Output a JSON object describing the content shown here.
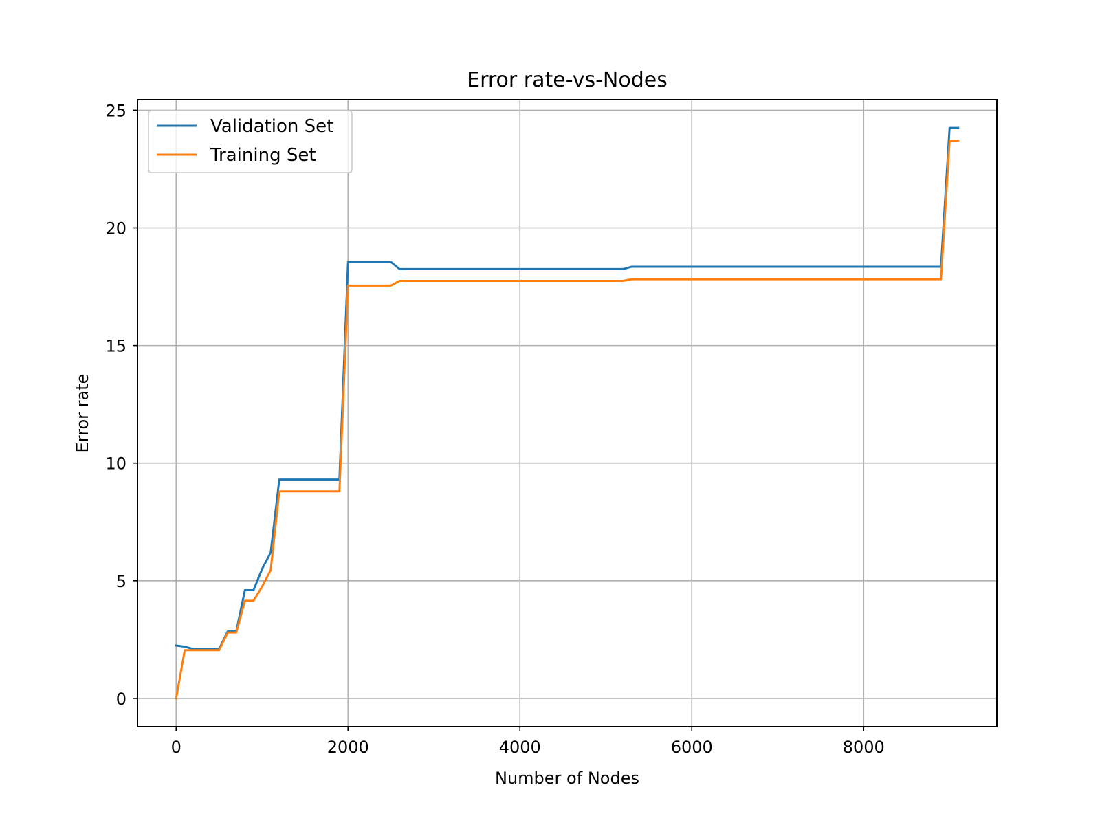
{
  "chart_data": {
    "type": "line",
    "title": "Error rate-vs-Nodes",
    "xlabel": "Number of Nodes",
    "ylabel": "Error rate",
    "xlim": [
      -450,
      9550
    ],
    "ylim": [
      -1.2,
      25.45
    ],
    "xticks": [
      0,
      2000,
      4000,
      6000,
      8000
    ],
    "yticks": [
      0,
      5,
      10,
      15,
      20,
      25
    ],
    "grid": true,
    "legend_position": "top-left",
    "series": [
      {
        "name": "Validation Set",
        "color": "#1f77b4",
        "x": [
          0,
          100,
          200,
          300,
          400,
          500,
          600,
          700,
          800,
          900,
          1000,
          1100,
          1200,
          1300,
          1400,
          1500,
          1600,
          1700,
          1800,
          1900,
          2000,
          2100,
          2200,
          2300,
          2400,
          2500,
          2600,
          2700,
          2800,
          2900,
          3000,
          3100,
          3200,
          3300,
          3400,
          3500,
          3600,
          3700,
          3800,
          3900,
          4000,
          4100,
          4200,
          4300,
          4400,
          4500,
          4600,
          4700,
          4800,
          4900,
          5000,
          5100,
          5200,
          5300,
          5400,
          5500,
          5600,
          5700,
          5800,
          5900,
          6000,
          6100,
          6200,
          6300,
          6400,
          6500,
          6600,
          6700,
          6800,
          6900,
          7000,
          7100,
          7200,
          7300,
          7400,
          7500,
          7600,
          7700,
          7800,
          7900,
          8000,
          8100,
          8200,
          8300,
          8400,
          8500,
          8600,
          8700,
          8800,
          8900,
          9000,
          9100
        ],
        "y": [
          2.25,
          2.2,
          2.1,
          2.1,
          2.1,
          2.1,
          2.85,
          2.85,
          4.6,
          4.6,
          5.5,
          6.2,
          9.3,
          9.3,
          9.3,
          9.3,
          9.3,
          9.3,
          9.3,
          9.3,
          18.55,
          18.55,
          18.55,
          18.55,
          18.55,
          18.55,
          18.25,
          18.25,
          18.25,
          18.25,
          18.25,
          18.25,
          18.25,
          18.25,
          18.25,
          18.25,
          18.25,
          18.25,
          18.25,
          18.25,
          18.25,
          18.25,
          18.25,
          18.25,
          18.25,
          18.25,
          18.25,
          18.25,
          18.25,
          18.25,
          18.25,
          18.25,
          18.25,
          18.35,
          18.35,
          18.35,
          18.35,
          18.35,
          18.35,
          18.35,
          18.35,
          18.35,
          18.35,
          18.35,
          18.35,
          18.35,
          18.35,
          18.35,
          18.35,
          18.35,
          18.35,
          18.35,
          18.35,
          18.35,
          18.35,
          18.35,
          18.35,
          18.35,
          18.35,
          18.35,
          18.35,
          18.35,
          18.35,
          18.35,
          18.35,
          18.35,
          18.35,
          18.35,
          18.35,
          18.35,
          24.25,
          24.25
        ]
      },
      {
        "name": "Training Set",
        "color": "#ff7f0e",
        "x": [
          0,
          100,
          200,
          300,
          400,
          500,
          600,
          700,
          800,
          900,
          1000,
          1100,
          1200,
          1300,
          1400,
          1500,
          1600,
          1700,
          1800,
          1900,
          2000,
          2100,
          2200,
          2300,
          2400,
          2500,
          2600,
          2700,
          2800,
          2900,
          3000,
          3100,
          3200,
          3300,
          3400,
          3500,
          3600,
          3700,
          3800,
          3900,
          4000,
          4100,
          4200,
          4300,
          4400,
          4500,
          4600,
          4700,
          4800,
          4900,
          5000,
          5100,
          5200,
          5300,
          5400,
          5500,
          5600,
          5700,
          5800,
          5900,
          6000,
          6100,
          6200,
          6300,
          6400,
          6500,
          6600,
          6700,
          6800,
          6900,
          7000,
          7100,
          7200,
          7300,
          7400,
          7500,
          7600,
          7700,
          7800,
          7900,
          8000,
          8100,
          8200,
          8300,
          8400,
          8500,
          8600,
          8700,
          8800,
          8900,
          9000,
          9100
        ],
        "y": [
          0.0,
          2.05,
          2.05,
          2.05,
          2.05,
          2.05,
          2.8,
          2.8,
          4.15,
          4.15,
          4.75,
          5.45,
          8.8,
          8.8,
          8.8,
          8.8,
          8.8,
          8.8,
          8.8,
          8.8,
          17.55,
          17.55,
          17.55,
          17.55,
          17.55,
          17.55,
          17.75,
          17.75,
          17.75,
          17.75,
          17.75,
          17.75,
          17.75,
          17.75,
          17.75,
          17.75,
          17.75,
          17.75,
          17.75,
          17.75,
          17.75,
          17.75,
          17.75,
          17.75,
          17.75,
          17.75,
          17.75,
          17.75,
          17.75,
          17.75,
          17.75,
          17.75,
          17.75,
          17.82,
          17.82,
          17.82,
          17.82,
          17.82,
          17.82,
          17.82,
          17.82,
          17.82,
          17.82,
          17.82,
          17.82,
          17.82,
          17.82,
          17.82,
          17.82,
          17.82,
          17.82,
          17.82,
          17.82,
          17.82,
          17.82,
          17.82,
          17.82,
          17.82,
          17.82,
          17.82,
          17.82,
          17.82,
          17.82,
          17.82,
          17.82,
          17.82,
          17.82,
          17.82,
          17.82,
          17.82,
          23.7,
          23.7
        ]
      }
    ]
  }
}
